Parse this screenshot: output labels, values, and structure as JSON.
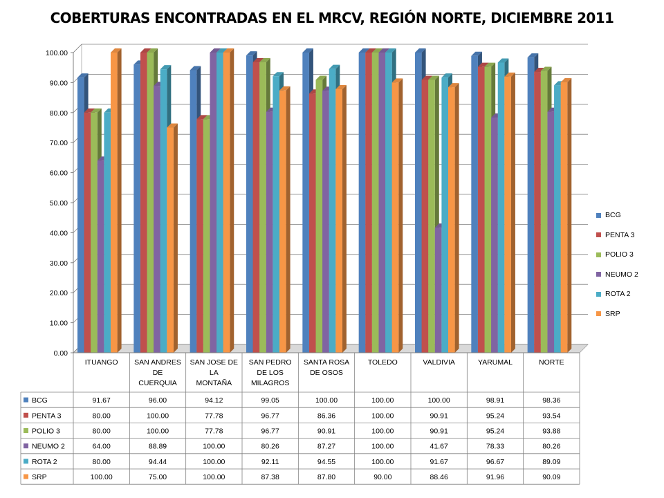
{
  "chart_data": {
    "type": "bar",
    "title": "COBERTURAS ENCONTRADAS EN EL MRCV, REGIÓN NORTE, DICIEMBRE 2011",
    "xlabel": "",
    "ylabel": "",
    "ylim": [
      0,
      100
    ],
    "yticks": [
      "0.00",
      "10.00",
      "20.00",
      "30.00",
      "40.00",
      "50.00",
      "60.00",
      "70.00",
      "80.00",
      "90.00",
      "100.00"
    ],
    "grid": true,
    "legend_placement": "right",
    "categories": [
      [
        "ITUANGO"
      ],
      [
        "SAN ANDRES",
        "DE",
        "CUERQUIA"
      ],
      [
        "SAN JOSE DE",
        "LA",
        "MONTAÑA"
      ],
      [
        "SAN PEDRO",
        "DE LOS",
        "MILAGROS"
      ],
      [
        "SANTA ROSA",
        "DE OSOS"
      ],
      [
        "TOLEDO"
      ],
      [
        "VALDIVIA"
      ],
      [
        "YARUMAL"
      ],
      [
        "NORTE"
      ]
    ],
    "series": [
      {
        "name": "BCG",
        "color": "#4f81bd",
        "values": [
          91.67,
          96.0,
          94.12,
          99.05,
          100.0,
          100.0,
          100.0,
          98.91,
          98.36
        ],
        "labels": [
          "91.67",
          "96.00",
          "94.12",
          "99.05",
          "100.00",
          "100.00",
          "100.00",
          "98.91",
          "98.36"
        ]
      },
      {
        "name": "PENTA 3",
        "color": "#c0504d",
        "values": [
          80.0,
          100.0,
          77.78,
          96.77,
          86.36,
          100.0,
          90.91,
          95.24,
          93.54
        ],
        "labels": [
          "80.00",
          "100.00",
          "77.78",
          "96.77",
          "86.36",
          "100.00",
          "90.91",
          "95.24",
          "93.54"
        ]
      },
      {
        "name": "POLIO 3",
        "color": "#9bbb59",
        "values": [
          80.0,
          100.0,
          77.78,
          96.77,
          90.91,
          100.0,
          90.91,
          95.24,
          93.88
        ],
        "labels": [
          "80.00",
          "100.00",
          "77.78",
          "96.77",
          "90.91",
          "100.00",
          "90.91",
          "95.24",
          "93.88"
        ]
      },
      {
        "name": "NEUMO 2",
        "color": "#8064a2",
        "values": [
          64.0,
          88.89,
          100.0,
          80.26,
          87.27,
          100.0,
          41.67,
          78.33,
          80.26
        ],
        "labels": [
          "64.00",
          "88.89",
          "100.00",
          "80.26",
          "87.27",
          "100.00",
          "41.67",
          "78.33",
          "80.26"
        ]
      },
      {
        "name": "ROTA 2",
        "color": "#4bacc6",
        "values": [
          80.0,
          94.44,
          100.0,
          92.11,
          94.55,
          100.0,
          91.67,
          96.67,
          89.09
        ],
        "labels": [
          "80.00",
          "94.44",
          "100.00",
          "92.11",
          "94.55",
          "100.00",
          "91.67",
          "96.67",
          "89.09"
        ]
      },
      {
        "name": "SRP",
        "color": "#f79646",
        "values": [
          100.0,
          75.0,
          100.0,
          87.38,
          87.8,
          90.0,
          88.46,
          91.96,
          90.09
        ],
        "labels": [
          "100.00",
          "75.00",
          "100.00",
          "87.38",
          "87.80",
          "90.00",
          "88.46",
          "91.96",
          "90.09"
        ]
      }
    ]
  }
}
